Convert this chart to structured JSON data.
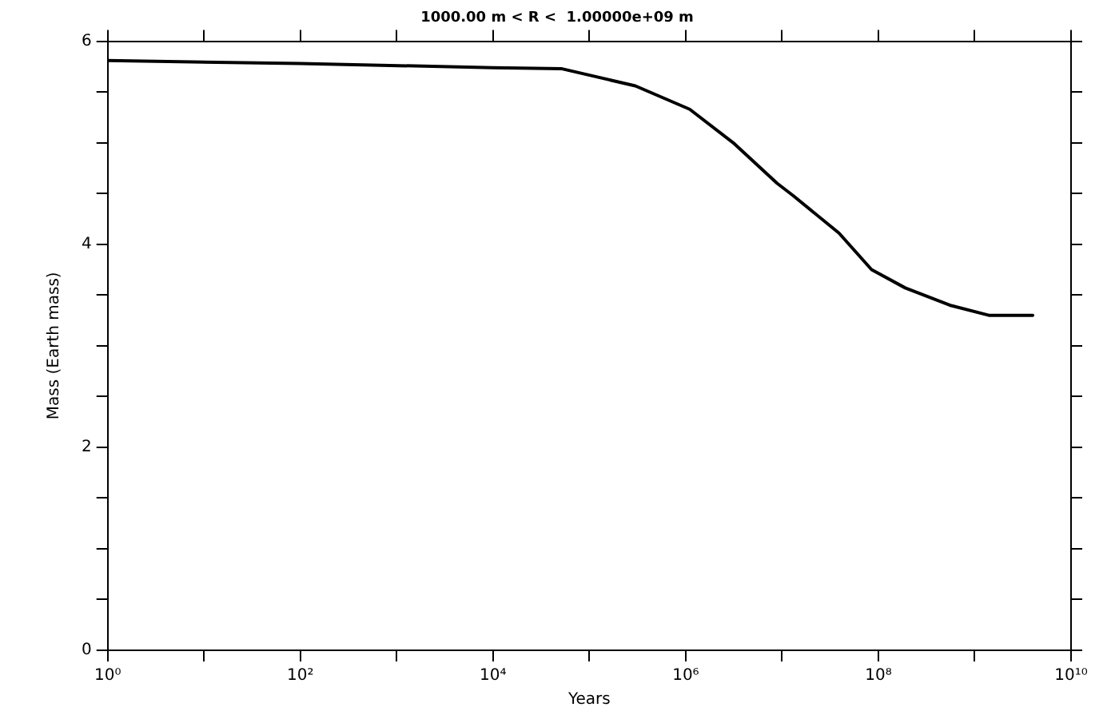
{
  "chart_data": {
    "type": "line",
    "title": "1000.00 m < R <  1.00000e+09 m",
    "xlabel": "Years",
    "ylabel": "Mass (Earth mass)",
    "log": "x",
    "x": [
      1,
      100,
      10000,
      51000,
      300000,
      1100000,
      3200000,
      8900000,
      13000000,
      39000000,
      85000000,
      190000000,
      550000000,
      1400000000,
      4000000000
    ],
    "series": [
      {
        "color": "#000000",
        "values": [
          5.81,
          5.78,
          5.74,
          5.73,
          5.56,
          5.33,
          4.99,
          4.6,
          4.48,
          4.11,
          3.75,
          3.57,
          3.4,
          3.3,
          3.3
        ]
      }
    ],
    "xlim": [
      1,
      10000000000
    ],
    "xticks": [
      {
        "value": 1,
        "label": "10⁰"
      },
      {
        "value": 10,
        "label": null
      },
      {
        "value": 100,
        "label": "10²"
      },
      {
        "value": 1000,
        "label": null
      },
      {
        "value": 10000,
        "label": "10⁴"
      },
      {
        "value": 100000,
        "label": null
      },
      {
        "value": 1000000,
        "label": "10⁶"
      },
      {
        "value": 10000000,
        "label": null
      },
      {
        "value": 100000000,
        "label": "10⁸"
      },
      {
        "value": 1000000000,
        "label": null
      },
      {
        "value": 10000000000,
        "label": "10¹⁰"
      }
    ],
    "ylim": [
      0,
      6
    ],
    "yticks": [
      0,
      {
        "value": 0.5,
        "label": null
      },
      {
        "value": 1,
        "label": null
      },
      {
        "value": 1.5,
        "label": null
      },
      2,
      {
        "value": 2.5,
        "label": null
      },
      {
        "value": 3,
        "label": null
      },
      {
        "value": 3.5,
        "label": null
      },
      4,
      {
        "value": 4.5,
        "label": null
      },
      {
        "value": 5,
        "label": null
      },
      {
        "value": 5.5,
        "label": null
      },
      6
    ],
    "grid": false,
    "legend": false,
    "marker": "none",
    "line_style": "solid"
  }
}
